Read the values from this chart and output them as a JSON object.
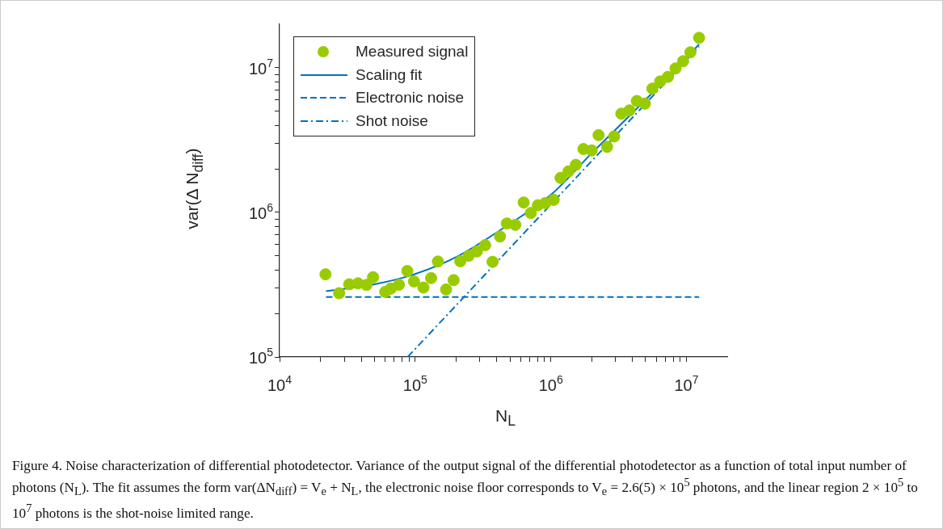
{
  "chart_data": {
    "type": "scatter",
    "xlabel": "N$_{L}$",
    "ylabel": "var(Δ N$_{diff}$)",
    "log": "xy",
    "legend": "top left",
    "marker": "circle",
    "xlim": [
      10000,
      20000000
    ],
    "ylim": [
      100000,
      20000000
    ],
    "xticks": [
      {
        "value": 10000,
        "label": "10$^{4}$"
      },
      {
        "value": 20000,
        "label": null
      },
      {
        "value": 30000,
        "label": null
      },
      {
        "value": 40000,
        "label": null
      },
      {
        "value": 50000,
        "label": null
      },
      {
        "value": 60000,
        "label": null
      },
      {
        "value": 70000,
        "label": null
      },
      {
        "value": 80000,
        "label": null
      },
      {
        "value": 90000,
        "label": null
      },
      {
        "value": 100000,
        "label": "10$^{5}$"
      },
      {
        "value": 200000,
        "label": null
      },
      {
        "value": 300000,
        "label": null
      },
      {
        "value": 400000,
        "label": null
      },
      {
        "value": 500000,
        "label": null
      },
      {
        "value": 600000,
        "label": null
      },
      {
        "value": 700000,
        "label": null
      },
      {
        "value": 800000,
        "label": null
      },
      {
        "value": 900000,
        "label": null
      },
      {
        "value": 1000000,
        "label": "10$^{6}$"
      },
      {
        "value": 2000000,
        "label": null
      },
      {
        "value": 3000000,
        "label": null
      },
      {
        "value": 4000000,
        "label": null
      },
      {
        "value": 5000000,
        "label": null
      },
      {
        "value": 6000000,
        "label": null
      },
      {
        "value": 7000000,
        "label": null
      },
      {
        "value": 8000000,
        "label": null
      },
      {
        "value": 9000000,
        "label": null
      },
      {
        "value": 10000000,
        "label": "10$^{7}$"
      }
    ],
    "yticks": [
      {
        "value": 100000,
        "label": "10$^{5}$"
      },
      {
        "value": 200000,
        "label": null
      },
      {
        "value": 300000,
        "label": null
      },
      {
        "value": 400000,
        "label": null
      },
      {
        "value": 500000,
        "label": null
      },
      {
        "value": 600000,
        "label": null
      },
      {
        "value": 700000,
        "label": null
      },
      {
        "value": 800000,
        "label": null
      },
      {
        "value": 900000,
        "label": null
      },
      {
        "value": 1000000,
        "label": "10$^{6}$"
      },
      {
        "value": 2000000,
        "label": null
      },
      {
        "value": 3000000,
        "label": null
      },
      {
        "value": 4000000,
        "label": null
      },
      {
        "value": 5000000,
        "label": null
      },
      {
        "value": 6000000,
        "label": null
      },
      {
        "value": 7000000,
        "label": null
      },
      {
        "value": 8000000,
        "label": null
      },
      {
        "value": 9000000,
        "label": null
      },
      {
        "value": 10000000,
        "label": "10$^{7}$"
      }
    ],
    "series": [
      {
        "name": "Measured signal",
        "color": "#99cc00",
        "x": [
          21800,
          27500,
          32600,
          37900,
          43700,
          48900,
          60100,
          66000,
          75800,
          87500,
          98000,
          115000,
          131000,
          147000,
          169000,
          192000,
          215000,
          248000,
          285000,
          328000,
          372000,
          422000,
          474000,
          547000,
          631000,
          712000,
          803000,
          910000,
          1050000,
          1180000,
          1350000,
          1530000,
          1740000,
          2000000,
          2250000,
          2600000,
          2930000,
          3310000,
          3800000,
          4310000,
          4940000,
          5610000,
          6400000,
          7300000,
          8320000,
          9450000,
          10700000,
          12400000
        ],
        "values": [
          373000,
          276000,
          318000,
          323000,
          315000,
          356000,
          282000,
          297000,
          316000,
          393000,
          333000,
          302000,
          351000,
          457000,
          293000,
          340000,
          459000,
          501000,
          537000,
          593000,
          455000,
          681000,
          838000,
          820000,
          1170000,
          990000,
          1120000,
          1160000,
          1220000,
          1730000,
          1920000,
          2130000,
          2740000,
          2680000,
          3420000,
          2840000,
          3350000,
          4810000,
          5070000,
          5890000,
          5650000,
          7180000,
          8040000,
          8650000,
          9900000,
          11100000,
          12800000,
          16100000
        ]
      },
      {
        "name": "Scaling fit",
        "type": "line",
        "color": "#0072bd",
        "line_style": "solid",
        "marker": "none",
        "x": [
          22000,
          50000,
          100000,
          200000,
          500000,
          1000000,
          2000000,
          5000000,
          12400000
        ],
        "values": [
          285000,
          318000,
          375000,
          490000,
          835000,
          1320000,
          2560000,
          6010000,
          14500000
        ]
      },
      {
        "name": "Electronic noise",
        "type": "line",
        "color": "#0072bd",
        "line_style": "dashed",
        "marker": "none",
        "x": [
          22000,
          12400000
        ],
        "values": [
          260000,
          260000
        ]
      },
      {
        "name": "Shot noise",
        "type": "line",
        "color": "#0072bd",
        "line_style": "dashdot",
        "marker": "none",
        "x": [
          88000,
          12400000
        ],
        "values": [
          100000,
          14000000
        ]
      }
    ],
    "annotations": [
      "Figure 4. Noise characterization of differential photodetector. Variance of the output signal of the differential photodetector as a function of total input number of photons (N$_{L}$). The fit assumes the form var(ΔN$_{diff}$) = V$_{e}$ + N$_{L}$, the electronic noise floor corresponds to V$_{e}$ = 2.6(5) × 10$^{5}$ photons, and the linear region 2 × 10$^{5}$ to 10$^{7}$ photons is the shot-noise limited range."
    ]
  }
}
